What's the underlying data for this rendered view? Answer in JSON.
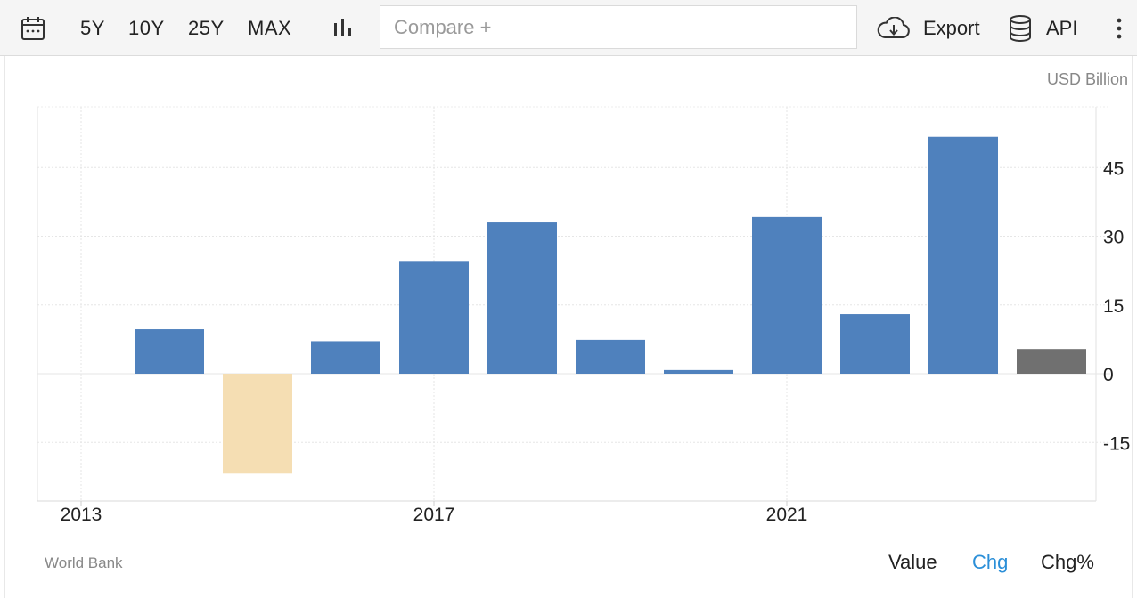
{
  "toolbar": {
    "ranges": [
      "5Y",
      "10Y",
      "25Y",
      "MAX"
    ],
    "compare_placeholder": "Compare +",
    "export_label": "Export",
    "api_label": "API",
    "icons": {
      "calendar": "calendar-icon",
      "chart_type": "bar-chart-icon",
      "export": "cloud-download-icon",
      "api": "database-icon",
      "more": "more-vertical-icon"
    }
  },
  "unit_label": "USD Billion",
  "source_label": "World Bank",
  "modes": [
    "Value",
    "Chg",
    "Chg%"
  ],
  "active_mode": "Chg",
  "chart_data": {
    "type": "bar",
    "categories": [
      "2014",
      "2015",
      "2016",
      "2017",
      "2018",
      "2019",
      "2020",
      "2021",
      "2022",
      "2023",
      "2024"
    ],
    "values": [
      9.7,
      -21.8,
      7.1,
      24.6,
      33.0,
      7.4,
      0.8,
      34.2,
      13.0,
      51.7,
      5.4
    ],
    "bar_colors": [
      "#4f81bd",
      "#f5deb3",
      "#4f81bd",
      "#4f81bd",
      "#4f81bd",
      "#4f81bd",
      "#4f81bd",
      "#4f81bd",
      "#4f81bd",
      "#4f81bd",
      "#707070"
    ],
    "x_tick_labels": [
      "2013",
      "2017",
      "2021"
    ],
    "y_ticks": [
      -15,
      0,
      15,
      30,
      45
    ],
    "ylim": [
      -27,
      58
    ],
    "xlim": [
      2013,
      2025.5
    ],
    "y_axis_position": "right",
    "grid": true,
    "title": "",
    "xlabel": "",
    "ylabel": ""
  }
}
